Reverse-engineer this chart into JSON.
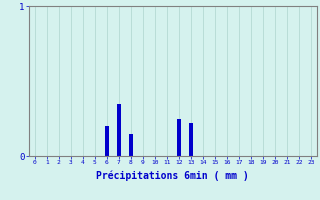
{
  "hours": [
    0,
    1,
    2,
    3,
    4,
    5,
    6,
    7,
    8,
    9,
    10,
    11,
    12,
    13,
    14,
    15,
    16,
    17,
    18,
    19,
    20,
    21,
    22,
    23
  ],
  "values": [
    0,
    0,
    0,
    0,
    0,
    0,
    0.2,
    0.35,
    0.15,
    0,
    0,
    0,
    0.25,
    0.22,
    0,
    0,
    0,
    0,
    0,
    0,
    0,
    0,
    0,
    0
  ],
  "xlim": [
    -0.5,
    23.5
  ],
  "ylim": [
    0,
    1
  ],
  "yticks": [
    0,
    1
  ],
  "xlabel": "Précipitations 6min ( mm )",
  "bar_color": "#0000cc",
  "bg_color": "#d5f2ee",
  "grid_color": "#aed4ce",
  "axis_color": "#808080",
  "text_color": "#0000cc",
  "bar_width": 0.35,
  "xlabel_fontsize": 7,
  "xtick_fontsize": 4.5,
  "ytick_fontsize": 6.5
}
